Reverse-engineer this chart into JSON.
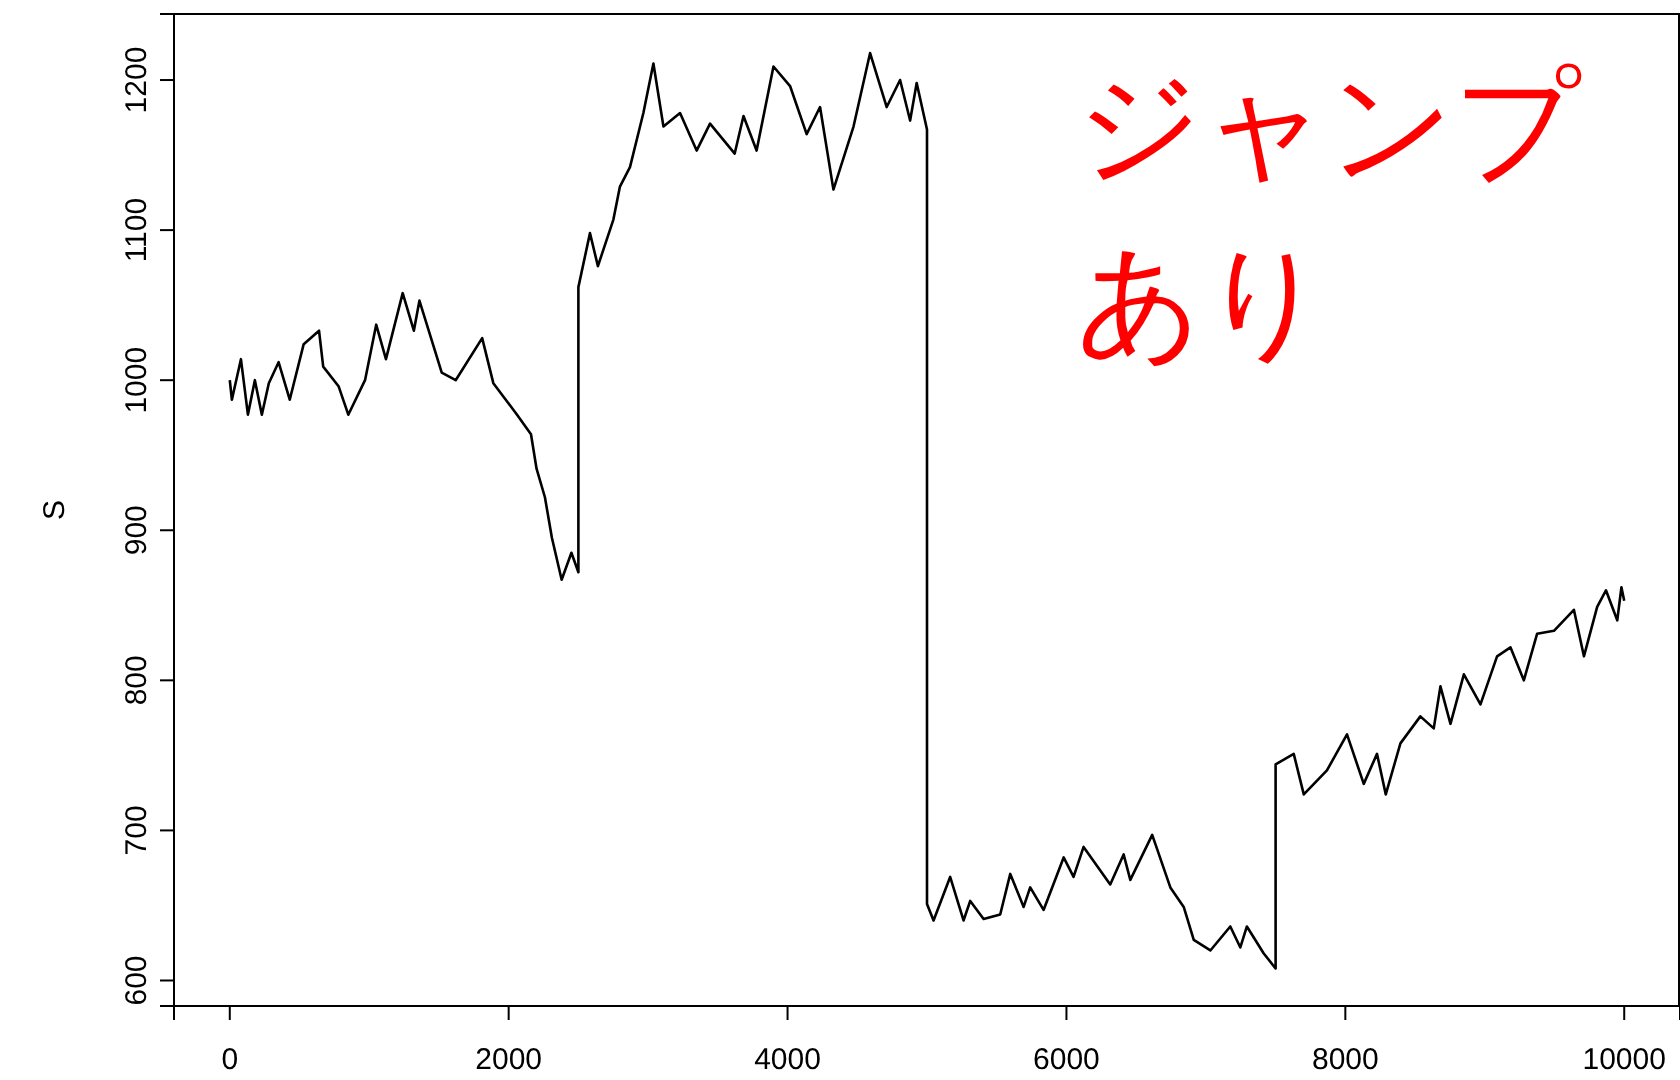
{
  "chart_data": {
    "type": "line",
    "ylabel": "S",
    "annotations": [
      "ジャンプ",
      "あり"
    ],
    "xlim": [
      -400,
      10400
    ],
    "ylim": [
      583,
      1244
    ],
    "xticks": [
      0,
      2000,
      4000,
      6000,
      8000,
      10000
    ],
    "yticks": [
      600,
      700,
      800,
      900,
      1000,
      1100,
      1200
    ],
    "grid": false,
    "marker": "none",
    "line_style": "solid",
    "series": [
      {
        "color": "#000000",
        "x": [
          0,
          15,
          80,
          130,
          180,
          230,
          280,
          350,
          430,
          530,
          640,
          670,
          780,
          850,
          970,
          1050,
          1120,
          1240,
          1320,
          1360,
          1520,
          1620,
          1810,
          1890,
          2060,
          2160,
          2200,
          2260,
          2310,
          2380,
          2450,
          2500,
          2500,
          2583,
          2640,
          2751,
          2798,
          2870,
          2966,
          3038,
          3110,
          3229,
          3348,
          3444,
          3621,
          3684,
          3778,
          3899,
          4018,
          4137,
          4233,
          4329,
          4473,
          4592,
          4711,
          4807,
          4879,
          4926,
          5000,
          5000,
          5047,
          5166,
          5262,
          5310,
          5406,
          5525,
          5597,
          5693,
          5740,
          5836,
          5980,
          6051,
          6123,
          6314,
          6410,
          6458,
          6615,
          6745,
          6841,
          6913,
          7032,
          7175,
          7247,
          7294,
          7415,
          7500,
          7500,
          7630,
          7702,
          7868,
          8012,
          8132,
          8227,
          8290,
          8395,
          8538,
          8634,
          8682,
          8754,
          8850,
          8969,
          9088,
          9184,
          9280,
          9375,
          9496,
          9639,
          9711,
          9806,
          9869,
          9950,
          9980,
          10000
        ],
        "values": [
          1000,
          987,
          1014,
          977,
          1000,
          977,
          998,
          1012,
          987,
          1024,
          1033,
          1009,
          996,
          977,
          1000,
          1037,
          1014,
          1058,
          1033,
          1053,
          1005,
          1000,
          1028,
          998,
          977,
          964,
          941,
          922,
          895,
          867,
          885,
          872,
          1062,
          1098,
          1076,
          1107,
          1129,
          1142,
          1178,
          1211,
          1169,
          1178,
          1153,
          1171,
          1151,
          1176,
          1153,
          1209,
          1196,
          1164,
          1182,
          1127,
          1169,
          1218,
          1182,
          1200,
          1173,
          1198,
          1167,
          651,
          640,
          669,
          640,
          653,
          641,
          644,
          671,
          649,
          662,
          647,
          682,
          669,
          689,
          664,
          684,
          667,
          697,
          662,
          649,
          627,
          620,
          636,
          622,
          636,
          618,
          608,
          744,
          751,
          724,
          740,
          764,
          731,
          751,
          724,
          758,
          776,
          768,
          796,
          771,
          804,
          784,
          816,
          822,
          800,
          831,
          833,
          847,
          816,
          849,
          860,
          840,
          862,
          853
        ]
      }
    ]
  }
}
